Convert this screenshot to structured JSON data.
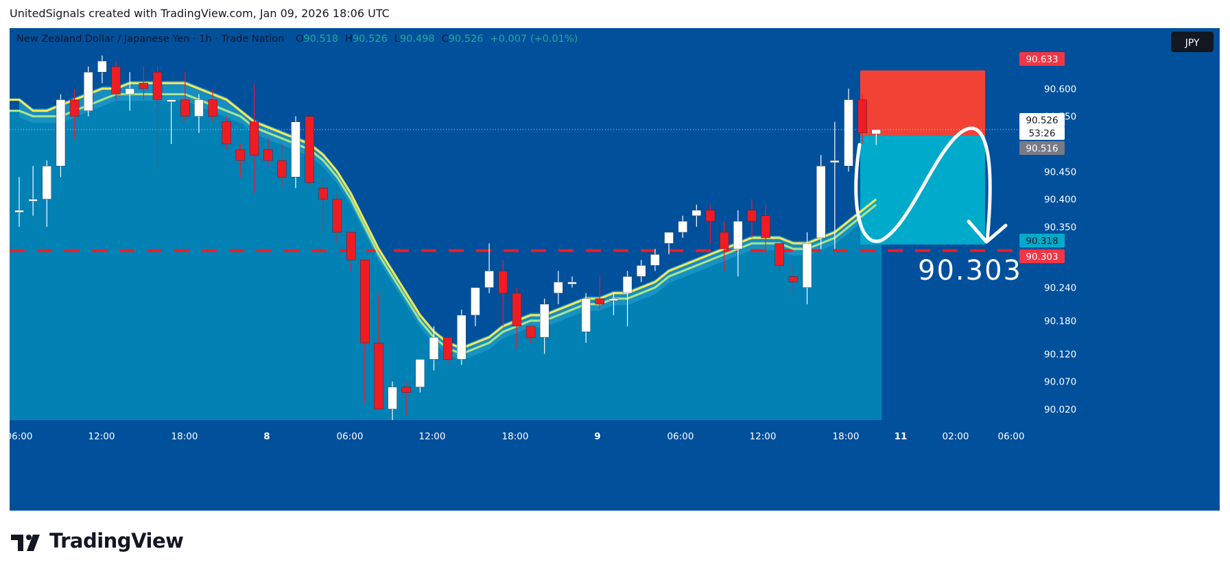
{
  "header": {
    "caption": "UnitedSignals created with TradingView.com, Jan 09, 2026 18:06 UTC"
  },
  "legend": {
    "symbol": "New Zealand Dollar / Japanese Yen · 1h · Trade Nation",
    "o_label": "O",
    "o_value": "90.518",
    "h_label": "H",
    "h_value": "90.526",
    "l_label": "L",
    "l_value": "90.498",
    "c_label": "C",
    "c_value": "90.526",
    "change": "+0.007 (+0.01%)"
  },
  "currency_button": "JPY",
  "brand": {
    "name": "TradingView"
  },
  "colors": {
    "background": "#01509c",
    "cloud": "#0281b5",
    "band": "#1994c4",
    "bull": "#ffffff",
    "bear": "#ef1c24",
    "ma_yellow": "#f7e657",
    "ma_green": "#a6e38c",
    "stop_zone": "#f24236",
    "target_zone": "#00aacb",
    "axis_text": "#ffffff"
  },
  "icons": [
    "tradingview-logo-icon"
  ],
  "chart_data": {
    "type": "candlestick",
    "symbol": "NZDJPY",
    "timeframe": "1h",
    "ylim": [
      90.0,
      90.66
    ],
    "y_ticks": [
      "90.600",
      "90.550",
      "90.450",
      "90.400",
      "90.350",
      "90.240",
      "90.180",
      "90.120",
      "90.070",
      "90.020"
    ],
    "x_ticks": [
      "06:00",
      "12:00",
      "18:00",
      "8",
      "06:00",
      "12:00",
      "18:00",
      "9",
      "06:00",
      "12:00",
      "18:00",
      "11",
      "02:00",
      "06:00"
    ],
    "candles": [
      {
        "o": 90.38,
        "h": 90.44,
        "l": 90.35,
        "c": 90.38
      },
      {
        "o": 90.4,
        "h": 90.46,
        "l": 90.37,
        "c": 90.4
      },
      {
        "o": 90.4,
        "h": 90.47,
        "l": 90.35,
        "c": 90.46
      },
      {
        "o": 90.46,
        "h": 90.59,
        "l": 90.44,
        "c": 90.58
      },
      {
        "o": 90.58,
        "h": 90.6,
        "l": 90.51,
        "c": 90.55
      },
      {
        "o": 90.56,
        "h": 90.64,
        "l": 90.55,
        "c": 90.63
      },
      {
        "o": 90.63,
        "h": 90.66,
        "l": 90.61,
        "c": 90.65
      },
      {
        "o": 90.64,
        "h": 90.65,
        "l": 90.58,
        "c": 90.59
      },
      {
        "o": 90.59,
        "h": 90.63,
        "l": 90.56,
        "c": 90.6
      },
      {
        "o": 90.61,
        "h": 90.64,
        "l": 90.58,
        "c": 90.6
      },
      {
        "o": 90.63,
        "h": 90.64,
        "l": 90.46,
        "c": 90.58
      },
      {
        "o": 90.58,
        "h": 90.58,
        "l": 90.5,
        "c": 90.58
      },
      {
        "o": 90.58,
        "h": 90.63,
        "l": 90.54,
        "c": 90.55
      },
      {
        "o": 90.55,
        "h": 90.59,
        "l": 90.52,
        "c": 90.58
      },
      {
        "o": 90.58,
        "h": 90.6,
        "l": 90.54,
        "c": 90.55
      },
      {
        "o": 90.54,
        "h": 90.55,
        "l": 90.49,
        "c": 90.5
      },
      {
        "o": 90.49,
        "h": 90.5,
        "l": 90.44,
        "c": 90.47
      },
      {
        "o": 90.54,
        "h": 90.61,
        "l": 90.41,
        "c": 90.48
      },
      {
        "o": 90.49,
        "h": 90.51,
        "l": 90.46,
        "c": 90.47
      },
      {
        "o": 90.47,
        "h": 90.5,
        "l": 90.42,
        "c": 90.44
      },
      {
        "o": 90.44,
        "h": 90.55,
        "l": 90.42,
        "c": 90.54
      },
      {
        "o": 90.55,
        "h": 90.55,
        "l": 90.42,
        "c": 90.43
      },
      {
        "o": 90.42,
        "h": 90.44,
        "l": 90.34,
        "c": 90.4
      },
      {
        "o": 90.4,
        "h": 90.41,
        "l": 90.32,
        "c": 90.34
      },
      {
        "o": 90.34,
        "h": 90.34,
        "l": 90.27,
        "c": 90.29
      },
      {
        "o": 90.29,
        "h": 90.29,
        "l": 90.03,
        "c": 90.14
      },
      {
        "o": 90.14,
        "h": 90.23,
        "l": 90.02,
        "c": 90.02
      },
      {
        "o": 90.02,
        "h": 90.07,
        "l": 90.0,
        "c": 90.06
      },
      {
        "o": 90.06,
        "h": 90.07,
        "l": 90.01,
        "c": 90.05
      },
      {
        "o": 90.06,
        "h": 90.11,
        "l": 90.05,
        "c": 90.11
      },
      {
        "o": 90.11,
        "h": 90.17,
        "l": 90.09,
        "c": 90.15
      },
      {
        "o": 90.15,
        "h": 90.15,
        "l": 90.1,
        "c": 90.11
      },
      {
        "o": 90.11,
        "h": 90.2,
        "l": 90.1,
        "c": 90.19
      },
      {
        "o": 90.19,
        "h": 90.24,
        "l": 90.17,
        "c": 90.24
      },
      {
        "o": 90.24,
        "h": 90.32,
        "l": 90.23,
        "c": 90.27
      },
      {
        "o": 90.27,
        "h": 90.29,
        "l": 90.17,
        "c": 90.23
      },
      {
        "o": 90.23,
        "h": 90.24,
        "l": 90.13,
        "c": 90.17
      },
      {
        "o": 90.17,
        "h": 90.17,
        "l": 90.14,
        "c": 90.15
      },
      {
        "o": 90.15,
        "h": 90.22,
        "l": 90.12,
        "c": 90.21
      },
      {
        "o": 90.23,
        "h": 90.27,
        "l": 90.21,
        "c": 90.25
      },
      {
        "o": 90.25,
        "h": 90.26,
        "l": 90.24,
        "c": 90.25
      },
      {
        "o": 90.16,
        "h": 90.23,
        "l": 90.14,
        "c": 90.22
      },
      {
        "o": 90.22,
        "h": 90.26,
        "l": 90.2,
        "c": 90.21
      },
      {
        "o": 90.22,
        "h": 90.23,
        "l": 90.19,
        "c": 90.22
      },
      {
        "o": 90.23,
        "h": 90.27,
        "l": 90.17,
        "c": 90.26
      },
      {
        "o": 90.26,
        "h": 90.29,
        "l": 90.25,
        "c": 90.28
      },
      {
        "o": 90.28,
        "h": 90.31,
        "l": 90.27,
        "c": 90.3
      },
      {
        "o": 90.32,
        "h": 90.34,
        "l": 90.3,
        "c": 90.34
      },
      {
        "o": 90.34,
        "h": 90.37,
        "l": 90.33,
        "c": 90.36
      },
      {
        "o": 90.37,
        "h": 90.39,
        "l": 90.35,
        "c": 90.38
      },
      {
        "o": 90.38,
        "h": 90.39,
        "l": 90.32,
        "c": 90.36
      },
      {
        "o": 90.34,
        "h": 90.36,
        "l": 90.27,
        "c": 90.31
      },
      {
        "o": 90.31,
        "h": 90.38,
        "l": 90.26,
        "c": 90.36
      },
      {
        "o": 90.38,
        "h": 90.4,
        "l": 90.33,
        "c": 90.36
      },
      {
        "o": 90.37,
        "h": 90.39,
        "l": 90.3,
        "c": 90.33
      },
      {
        "o": 90.32,
        "h": 90.32,
        "l": 90.27,
        "c": 90.28
      },
      {
        "o": 90.26,
        "h": 90.28,
        "l": 90.23,
        "c": 90.25
      },
      {
        "o": 90.24,
        "h": 90.34,
        "l": 90.21,
        "c": 90.32
      },
      {
        "o": 90.33,
        "h": 90.48,
        "l": 90.31,
        "c": 90.46
      },
      {
        "o": 90.47,
        "h": 90.54,
        "l": 90.31,
        "c": 90.47
      },
      {
        "o": 90.46,
        "h": 90.6,
        "l": 90.45,
        "c": 90.58
      },
      {
        "o": 90.58,
        "h": 90.59,
        "l": 90.5,
        "c": 90.52
      },
      {
        "o": 90.518,
        "h": 90.526,
        "l": 90.498,
        "c": 90.526
      }
    ],
    "ma_yellow": [
      90.58,
      90.56,
      90.56,
      90.57,
      90.58,
      90.59,
      90.6,
      90.6,
      90.61,
      90.61,
      90.61,
      90.61,
      90.61,
      90.6,
      90.59,
      90.58,
      90.56,
      90.54,
      90.53,
      90.52,
      90.51,
      90.5,
      90.48,
      90.45,
      90.41,
      90.36,
      90.31,
      90.27,
      90.23,
      90.19,
      90.16,
      90.14,
      90.13,
      90.14,
      90.15,
      90.17,
      90.18,
      90.19,
      90.19,
      90.2,
      90.21,
      90.22,
      90.22,
      90.23,
      90.23,
      90.24,
      90.25,
      90.27,
      90.28,
      90.29,
      90.3,
      90.31,
      90.32,
      90.33,
      90.33,
      90.33,
      90.32,
      90.32,
      90.33,
      90.34,
      90.36,
      90.38,
      90.4
    ],
    "ma_green": [
      90.56,
      90.55,
      90.55,
      90.55,
      90.56,
      90.57,
      90.58,
      90.59,
      90.59,
      90.59,
      90.59,
      90.59,
      90.59,
      90.58,
      90.57,
      90.56,
      90.55,
      90.53,
      90.52,
      90.51,
      90.5,
      90.49,
      90.47,
      90.44,
      90.4,
      90.35,
      90.3,
      90.26,
      90.22,
      90.18,
      90.15,
      90.13,
      90.12,
      90.13,
      90.14,
      90.16,
      90.17,
      90.18,
      90.18,
      90.19,
      90.2,
      90.21,
      90.21,
      90.22,
      90.22,
      90.23,
      90.24,
      90.26,
      90.27,
      90.28,
      90.29,
      90.3,
      90.31,
      90.32,
      90.32,
      90.32,
      90.31,
      90.31,
      90.32,
      90.33,
      90.35,
      90.37,
      90.39
    ],
    "dashed_level": 90.318,
    "current_price": 90.526,
    "position": {
      "type": "short",
      "stop_top": 90.633,
      "entry": 90.516,
      "target": 90.318
    },
    "price_labels": [
      {
        "text": "90.633",
        "style": "stop"
      },
      {
        "text": "90.526",
        "style": "current"
      },
      {
        "text": "53:26",
        "style": "countdown"
      },
      {
        "text": "90.516",
        "style": "entry"
      },
      {
        "text": "90.318",
        "style": "target"
      },
      {
        "text": "90.303",
        "style": "level"
      }
    ],
    "annotation": "90.303"
  }
}
